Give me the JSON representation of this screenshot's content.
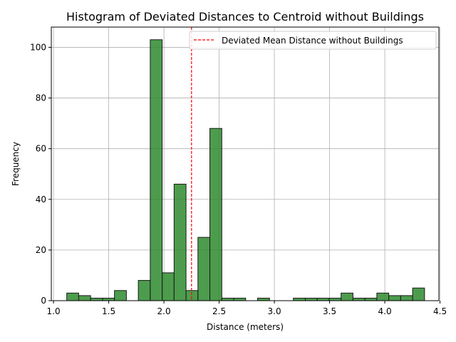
{
  "chart_data": {
    "type": "histogram",
    "title": "Histogram of Deviated Distances to Centroid without Buildings",
    "xlabel": "Distance (meters)",
    "ylabel": "Frequency",
    "xlim": [
      0.98,
      4.49
    ],
    "ylim": [
      0,
      108
    ],
    "xticks": [
      1.0,
      1.5,
      2.0,
      2.5,
      3.0,
      3.5,
      4.0,
      4.5
    ],
    "xtick_labels": [
      "1.0",
      "1.5",
      "2.0",
      "2.5",
      "3.0",
      "3.5",
      "4.0",
      "4.5"
    ],
    "yticks": [
      0,
      20,
      40,
      60,
      80,
      100
    ],
    "ytick_labels": [
      "0",
      "20",
      "40",
      "60",
      "80",
      "100"
    ],
    "grid": true,
    "bin_start": 1.12,
    "bin_width": 0.108,
    "counts": [
      3,
      2,
      1,
      1,
      4,
      0,
      8,
      103,
      11,
      46,
      4,
      25,
      68,
      1,
      1,
      0,
      1,
      0,
      0,
      1,
      1,
      1,
      1,
      3,
      1,
      1,
      3,
      2,
      2,
      5
    ],
    "bar_color": "#2e8b2e",
    "bar_edge_color": "#1a1a1a",
    "mean_line": {
      "x": 2.25,
      "label": "Deviated Mean Distance without Buildings",
      "color": "#ff0000",
      "style": "dashed"
    },
    "legend_position": "top-right"
  }
}
